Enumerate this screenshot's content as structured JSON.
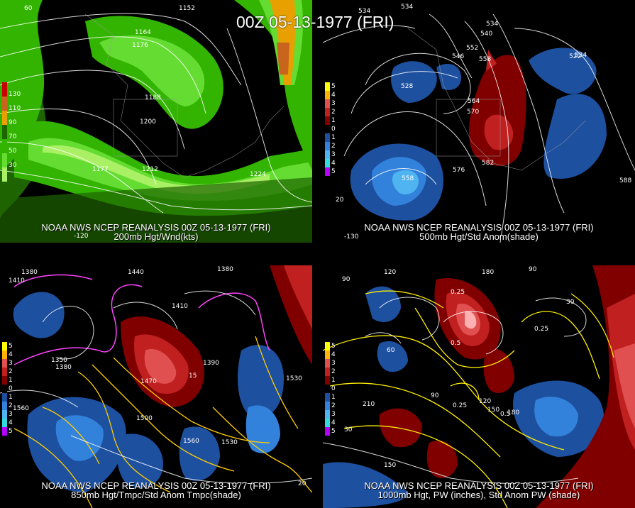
{
  "title": "00Z 05-13-1977 (FRI)",
  "panels": [
    {
      "caption_line1": "NOAA NWS NCEP REANALYSIS 00Z 05-13-1977 (FRI)",
      "caption_line2": "200mb Hgt/Wnd(kts)",
      "legend": [
        {
          "label": "130",
          "color": "#c8641e"
        },
        {
          "label": "110",
          "color": "#e8a000"
        },
        {
          "label": "90",
          "color": "#1e6400"
        },
        {
          "label": "70",
          "color": "#32b400"
        },
        {
          "label": "50",
          "color": "#64dc32"
        },
        {
          "label": "30",
          "color": "#aaf064"
        }
      ],
      "labels": [
        "1152",
        "1164",
        "1176",
        "1188",
        "1200",
        "1212",
        "1224",
        "1164",
        "1177",
        "60",
        "-120"
      ]
    },
    {
      "caption_line1": "NOAA NWS NCEP REANALYSIS 00Z 05-13-1977 (FRI)",
      "caption_line2": "500mb Hgt/Std Anom(shade)",
      "legend": [
        {
          "label": "5",
          "color": "#ffff00"
        },
        {
          "label": "4",
          "color": "#ffb400"
        },
        {
          "label": "3",
          "color": "#e05050"
        },
        {
          "label": "2",
          "color": "#c02020"
        },
        {
          "label": "1",
          "color": "#800000"
        },
        {
          "label": "0",
          "color": "#000000"
        },
        {
          "label": "1",
          "color": "#1e50a0"
        },
        {
          "label": "2",
          "color": "#3282dc"
        },
        {
          "label": "3",
          "color": "#50b4f0"
        },
        {
          "label": "4",
          "color": "#32dcdc"
        },
        {
          "label": "5",
          "color": "#b400ff"
        }
      ],
      "labels": [
        "534",
        "534",
        "528",
        "540",
        "546",
        "552",
        "558",
        "564",
        "570",
        "576",
        "582",
        "588",
        "528",
        "534",
        "558",
        "522",
        "20",
        "-130"
      ]
    },
    {
      "caption_line1": "NOAA NWS NCEP REANALYSIS 00Z 05-13-1977 (FRI)",
      "caption_line2": "850mb Hgt/Tmpc/Std Anom Tmpc(shade)",
      "legend": [
        {
          "label": "5",
          "color": "#ffff00"
        },
        {
          "label": "4",
          "color": "#ffb400"
        },
        {
          "label": "3",
          "color": "#e05050"
        },
        {
          "label": "2",
          "color": "#c02020"
        },
        {
          "label": "1",
          "color": "#800000"
        },
        {
          "label": "0",
          "color": "#000000"
        },
        {
          "label": "1",
          "color": "#1e50a0"
        },
        {
          "label": "2",
          "color": "#3282dc"
        },
        {
          "label": "3",
          "color": "#50b4f0"
        },
        {
          "label": "4",
          "color": "#32dcdc"
        },
        {
          "label": "5",
          "color": "#b400ff"
        }
      ],
      "labels": [
        "1380",
        "1410",
        "1440",
        "1410",
        "1380",
        "1350",
        "1380",
        "1470",
        "1500",
        "1530",
        "1560",
        "1530",
        "1560",
        "-10",
        "15",
        "20",
        "1390"
      ]
    },
    {
      "caption_line1": "NOAA NWS NCEP REANALYSIS 00Z 05-13-1977 (FRI)",
      "caption_line2": "1000mb Hgt, PW (inches), Std Anom PW (shade)",
      "legend": [
        {
          "label": "5",
          "color": "#ffff00"
        },
        {
          "label": "4",
          "color": "#ffb400"
        },
        {
          "label": "3",
          "color": "#e05050"
        },
        {
          "label": "2",
          "color": "#c02020"
        },
        {
          "label": "1",
          "color": "#800000"
        },
        {
          "label": "0",
          "color": "#000000"
        },
        {
          "label": "1",
          "color": "#1e50a0"
        },
        {
          "label": "2",
          "color": "#3282dc"
        },
        {
          "label": "3",
          "color": "#50b4f0"
        },
        {
          "label": "4",
          "color": "#32dcdc"
        },
        {
          "label": "5",
          "color": "#b400ff"
        }
      ],
      "labels": [
        "90",
        "120",
        "180",
        "90",
        "30",
        "60",
        "0.25",
        "0.5",
        "120",
        "150",
        "210",
        "180",
        "150",
        "90",
        "0.25",
        "0.5",
        "0.25",
        "30"
      ]
    }
  ]
}
